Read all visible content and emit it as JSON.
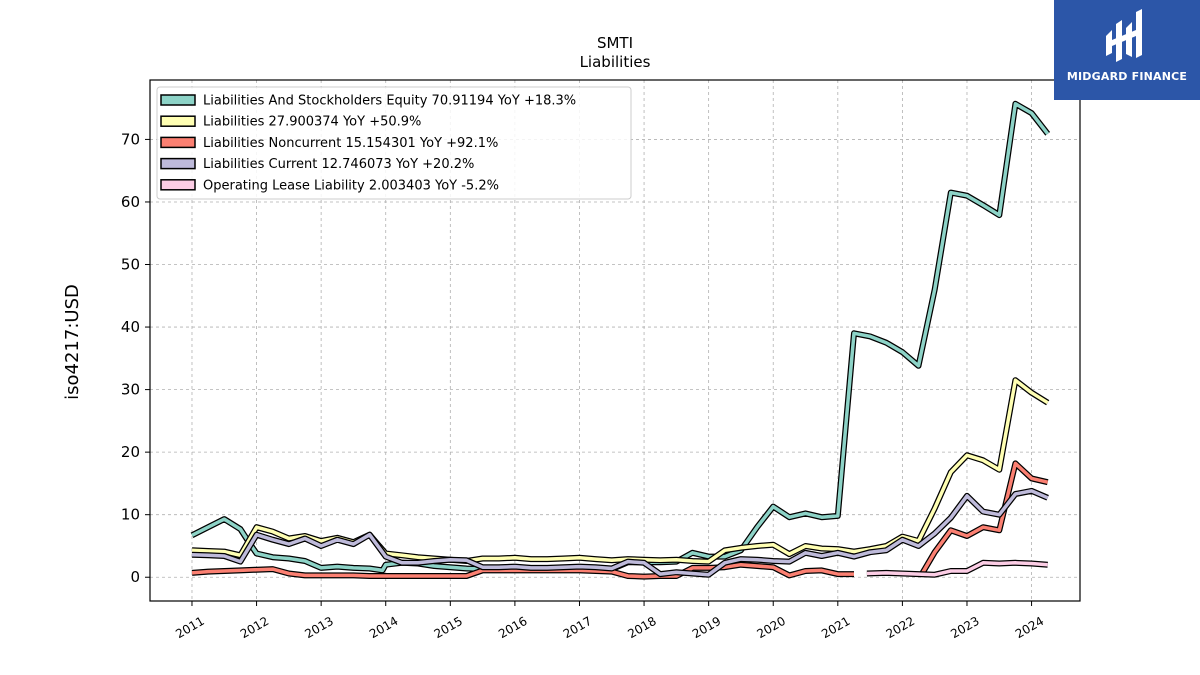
{
  "brand": {
    "name": "MIDGARD FINANCE",
    "icon": "midgard-logo-icon",
    "color": "#2c56a8"
  },
  "chart_data": {
    "type": "line",
    "title": "SMTI",
    "subtitle": "Liabilities",
    "xlabel": "",
    "ylabel": "iso4217:USD",
    "xlim": [
      2010.35,
      2024.75
    ],
    "ylim": [
      -3.8,
      79.5
    ],
    "yticks": [
      0,
      10,
      20,
      30,
      40,
      50,
      60,
      70
    ],
    "xticks": [
      "2011",
      "2012",
      "2013",
      "2014",
      "2015",
      "2016",
      "2017",
      "2018",
      "2019",
      "2020",
      "2021",
      "2022",
      "2023",
      "2024"
    ],
    "grid": true,
    "legend_position": "top-left",
    "series": [
      {
        "name": "Liabilities And Stockholders Equity",
        "legend_label": "Liabilities And Stockholders Equity  70.91194 YoY +18.3%",
        "color": "#8dd3c7",
        "points": [
          [
            2011.0,
            6.7
          ],
          [
            2011.25,
            8.0
          ],
          [
            2011.5,
            9.3
          ],
          [
            2011.75,
            7.7
          ],
          [
            2011.9,
            5.3
          ],
          [
            2012.0,
            3.8
          ],
          [
            2012.25,
            3.2
          ],
          [
            2012.5,
            3.0
          ],
          [
            2012.75,
            2.6
          ],
          [
            2013.0,
            1.5
          ],
          [
            2013.25,
            1.7
          ],
          [
            2013.5,
            1.5
          ],
          [
            2013.75,
            1.4
          ],
          [
            2013.95,
            1.1
          ],
          [
            2014.0,
            2.0
          ],
          [
            2014.25,
            2.3
          ],
          [
            2014.5,
            2.2
          ],
          [
            2014.75,
            1.8
          ],
          [
            2015.0,
            1.6
          ],
          [
            2015.25,
            1.4
          ],
          [
            2015.5,
            1.3
          ],
          [
            2015.75,
            1.3
          ],
          [
            2016.0,
            1.3
          ],
          [
            2016.25,
            1.4
          ],
          [
            2016.5,
            1.4
          ],
          [
            2016.75,
            1.4
          ],
          [
            2017.0,
            1.5
          ],
          [
            2017.25,
            1.4
          ],
          [
            2017.5,
            1.3
          ],
          [
            2017.75,
            2.4
          ],
          [
            2018.0,
            2.4
          ],
          [
            2018.25,
            2.4
          ],
          [
            2018.5,
            2.5
          ],
          [
            2018.75,
            3.9
          ],
          [
            2019.0,
            3.3
          ],
          [
            2019.25,
            3.3
          ],
          [
            2019.5,
            4.3
          ],
          [
            2019.75,
            8.0
          ],
          [
            2020.0,
            11.3
          ],
          [
            2020.25,
            9.6
          ],
          [
            2020.5,
            10.2
          ],
          [
            2020.75,
            9.6
          ],
          [
            2021.0,
            9.8
          ],
          [
            2021.25,
            39.0
          ],
          [
            2021.5,
            38.5
          ],
          [
            2021.75,
            37.5
          ],
          [
            2022.0,
            36.0
          ],
          [
            2022.25,
            33.8
          ],
          [
            2022.5,
            46.0
          ],
          [
            2022.75,
            61.5
          ],
          [
            2023.0,
            61.0
          ],
          [
            2023.25,
            59.5
          ],
          [
            2023.5,
            57.9
          ],
          [
            2023.75,
            75.7
          ],
          [
            2024.0,
            74.2
          ],
          [
            2024.25,
            70.9
          ]
        ]
      },
      {
        "name": "Liabilities",
        "legend_label": "Liabilities  27.900374 YoY +50.9%",
        "color": "#ffffb3",
        "points": [
          [
            2011.0,
            4.3
          ],
          [
            2011.25,
            4.2
          ],
          [
            2011.5,
            4.1
          ],
          [
            2011.75,
            3.5
          ],
          [
            2012.0,
            8.0
          ],
          [
            2012.25,
            7.3
          ],
          [
            2012.5,
            6.2
          ],
          [
            2012.75,
            6.6
          ],
          [
            2013.0,
            5.8
          ],
          [
            2013.25,
            6.3
          ],
          [
            2013.5,
            5.6
          ],
          [
            2013.75,
            6.8
          ],
          [
            2014.0,
            3.8
          ],
          [
            2014.25,
            3.5
          ],
          [
            2014.5,
            3.2
          ],
          [
            2014.75,
            3.0
          ],
          [
            2015.0,
            2.8
          ],
          [
            2015.25,
            2.6
          ],
          [
            2015.5,
            3.0
          ],
          [
            2015.75,
            3.0
          ],
          [
            2016.0,
            3.1
          ],
          [
            2016.25,
            2.9
          ],
          [
            2016.5,
            2.9
          ],
          [
            2016.75,
            3.0
          ],
          [
            2017.0,
            3.1
          ],
          [
            2017.25,
            2.9
          ],
          [
            2017.5,
            2.7
          ],
          [
            2017.75,
            2.9
          ],
          [
            2018.0,
            2.8
          ],
          [
            2018.25,
            2.7
          ],
          [
            2018.5,
            2.8
          ],
          [
            2018.75,
            2.6
          ],
          [
            2019.0,
            2.5
          ],
          [
            2019.25,
            4.3
          ],
          [
            2019.5,
            4.7
          ],
          [
            2019.75,
            5.0
          ],
          [
            2020.0,
            5.2
          ],
          [
            2020.25,
            3.7
          ],
          [
            2020.5,
            5.0
          ],
          [
            2020.75,
            4.6
          ],
          [
            2021.0,
            4.5
          ],
          [
            2021.25,
            4.1
          ],
          [
            2021.5,
            4.5
          ],
          [
            2021.75,
            5.0
          ],
          [
            2022.0,
            6.5
          ],
          [
            2022.25,
            5.8
          ],
          [
            2022.5,
            11.0
          ],
          [
            2022.75,
            16.8
          ],
          [
            2023.0,
            19.5
          ],
          [
            2023.25,
            18.7
          ],
          [
            2023.5,
            17.2
          ],
          [
            2023.75,
            31.5
          ],
          [
            2024.0,
            29.5
          ],
          [
            2024.25,
            27.9
          ]
        ]
      },
      {
        "name": "Liabilities Noncurrent",
        "legend_label": "Liabilities Noncurrent  15.154301 YoY +92.1%",
        "color": "#fb8072",
        "points": [
          [
            2011.0,
            0.7
          ],
          [
            2011.25,
            0.9
          ],
          [
            2011.5,
            1.0
          ],
          [
            2011.75,
            1.1
          ],
          [
            2012.0,
            1.2
          ],
          [
            2012.25,
            1.3
          ],
          [
            2012.5,
            0.6
          ],
          [
            2012.75,
            0.3
          ],
          [
            2013.0,
            0.3
          ],
          [
            2013.25,
            0.3
          ],
          [
            2013.5,
            0.3
          ],
          [
            2013.75,
            0.2
          ],
          [
            2014.0,
            0.2
          ],
          [
            2014.5,
            0.2
          ],
          [
            2015.0,
            0.2
          ],
          [
            2015.25,
            0.2
          ],
          [
            2015.5,
            1.1
          ],
          [
            2015.75,
            1.1
          ],
          [
            2016.0,
            1.1
          ],
          [
            2016.5,
            1.1
          ],
          [
            2017.0,
            1.1
          ],
          [
            2017.5,
            0.9
          ],
          [
            2017.75,
            0.2
          ],
          [
            2018.0,
            0.1
          ],
          [
            2018.25,
            0.2
          ],
          [
            2018.5,
            0.2
          ],
          [
            2018.75,
            1.5
          ],
          [
            2019.0,
            1.5
          ],
          [
            2019.25,
            1.6
          ],
          [
            2019.5,
            2.0
          ],
          [
            2019.75,
            1.8
          ],
          [
            2020.0,
            1.6
          ],
          [
            2020.25,
            0.3
          ],
          [
            2020.5,
            1.0
          ],
          [
            2020.75,
            1.1
          ],
          [
            2021.0,
            0.5
          ],
          [
            2021.25,
            0.5
          ],
          [
            2021.5,
            null
          ],
          [
            2022.2,
            null
          ],
          [
            2022.3,
            0.5
          ],
          [
            2022.5,
            4.0
          ],
          [
            2022.75,
            7.5
          ],
          [
            2023.0,
            6.6
          ],
          [
            2023.25,
            8.0
          ],
          [
            2023.5,
            7.5
          ],
          [
            2023.75,
            18.2
          ],
          [
            2024.0,
            15.8
          ],
          [
            2024.25,
            15.2
          ]
        ]
      },
      {
        "name": "Liabilities Current",
        "legend_label": "Liabilities Current  12.746073 YoY +20.2%",
        "color": "#bebada",
        "points": [
          [
            2011.0,
            3.6
          ],
          [
            2011.25,
            3.5
          ],
          [
            2011.5,
            3.4
          ],
          [
            2011.75,
            2.5
          ],
          [
            2012.0,
            6.8
          ],
          [
            2012.25,
            6.0
          ],
          [
            2012.5,
            5.3
          ],
          [
            2012.75,
            6.2
          ],
          [
            2013.0,
            5.0
          ],
          [
            2013.25,
            6.0
          ],
          [
            2013.5,
            5.3
          ],
          [
            2013.75,
            6.8
          ],
          [
            2014.0,
            3.3
          ],
          [
            2014.25,
            2.3
          ],
          [
            2014.5,
            2.3
          ],
          [
            2014.75,
            2.6
          ],
          [
            2015.0,
            2.8
          ],
          [
            2015.25,
            2.7
          ],
          [
            2015.5,
            1.6
          ],
          [
            2015.75,
            1.6
          ],
          [
            2016.0,
            1.7
          ],
          [
            2016.25,
            1.5
          ],
          [
            2016.5,
            1.5
          ],
          [
            2016.75,
            1.6
          ],
          [
            2017.0,
            1.7
          ],
          [
            2017.25,
            1.6
          ],
          [
            2017.5,
            1.4
          ],
          [
            2017.75,
            2.5
          ],
          [
            2018.0,
            2.3
          ],
          [
            2018.25,
            0.5
          ],
          [
            2018.5,
            0.8
          ],
          [
            2018.75,
            0.6
          ],
          [
            2019.0,
            0.4
          ],
          [
            2019.25,
            2.3
          ],
          [
            2019.5,
            2.9
          ],
          [
            2019.75,
            2.8
          ],
          [
            2020.0,
            2.6
          ],
          [
            2020.25,
            2.5
          ],
          [
            2020.5,
            3.9
          ],
          [
            2020.75,
            3.4
          ],
          [
            2021.0,
            3.9
          ],
          [
            2021.25,
            3.3
          ],
          [
            2021.5,
            4.0
          ],
          [
            2021.75,
            4.3
          ],
          [
            2022.0,
            6.0
          ],
          [
            2022.25,
            5.0
          ],
          [
            2022.5,
            7.0
          ],
          [
            2022.75,
            9.5
          ],
          [
            2023.0,
            13.0
          ],
          [
            2023.25,
            10.5
          ],
          [
            2023.5,
            10.0
          ],
          [
            2023.75,
            13.3
          ],
          [
            2024.0,
            13.8
          ],
          [
            2024.25,
            12.7
          ]
        ]
      },
      {
        "name": "Operating Lease Liability",
        "legend_label": "Operating Lease Liability  2.003403 YoY -5.2%",
        "color": "#fccde5",
        "points": [
          [
            2021.45,
            0.6
          ],
          [
            2021.75,
            0.7
          ],
          [
            2022.0,
            0.6
          ],
          [
            2022.25,
            0.5
          ],
          [
            2022.5,
            0.4
          ],
          [
            2022.75,
            1.0
          ],
          [
            2023.0,
            1.0
          ],
          [
            2023.25,
            2.3
          ],
          [
            2023.5,
            2.2
          ],
          [
            2023.75,
            2.3
          ],
          [
            2024.0,
            2.2
          ],
          [
            2024.25,
            2.0
          ]
        ]
      }
    ]
  }
}
